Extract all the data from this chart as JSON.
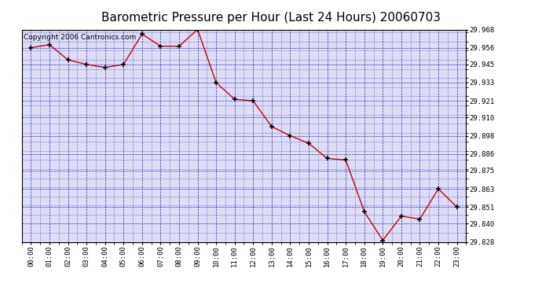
{
  "title": "Barometric Pressure per Hour (Last 24 Hours) 20060703",
  "copyright": "Copyright 2006 Cantronics.com",
  "hours": [
    "00:00",
    "01:00",
    "02:00",
    "03:00",
    "04:00",
    "05:00",
    "06:00",
    "07:00",
    "08:00",
    "09:00",
    "10:00",
    "11:00",
    "12:00",
    "13:00",
    "14:00",
    "15:00",
    "16:00",
    "17:00",
    "18:00",
    "19:00",
    "20:00",
    "21:00",
    "22:00",
    "23:00"
  ],
  "values": [
    29.956,
    29.958,
    29.948,
    29.945,
    29.943,
    29.945,
    29.965,
    29.957,
    29.957,
    29.968,
    29.933,
    29.922,
    29.921,
    29.904,
    29.898,
    29.893,
    29.883,
    29.882,
    29.848,
    29.829,
    29.845,
    29.843,
    29.863,
    29.851
  ],
  "ylim_min": 29.828,
  "ylim_max": 29.968,
  "yticks": [
    29.828,
    29.84,
    29.851,
    29.863,
    29.875,
    29.886,
    29.898,
    29.91,
    29.921,
    29.933,
    29.945,
    29.956,
    29.968
  ],
  "line_color": "#cc0000",
  "marker_color": "#000000",
  "bg_color": "#ffffff",
  "plot_bg_color": "#ddddf5",
  "grid_color": "#0000bb",
  "title_fontsize": 11,
  "copyright_fontsize": 6.5
}
